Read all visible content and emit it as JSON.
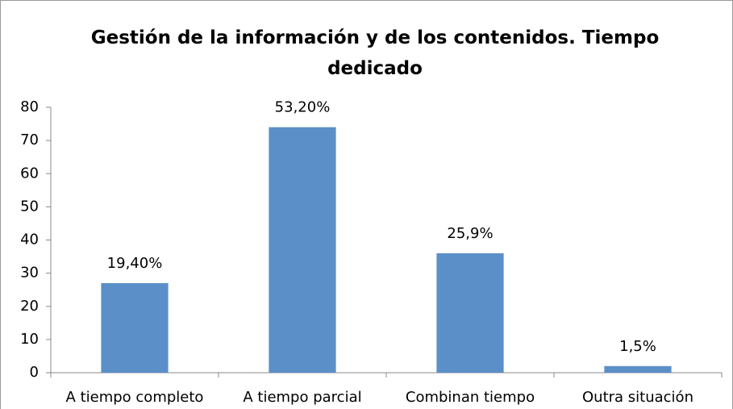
{
  "chart_data": {
    "type": "bar",
    "title": "Gestión de la información y de los contenidos. Tiempo dedicado",
    "categories": [
      "A tiempo completo",
      "A tiempo parcial",
      "Combinan tiempo",
      "Outra situación"
    ],
    "values": [
      27,
      74,
      36,
      2
    ],
    "annotations": [
      "19,40%",
      "53,20%",
      "25,9%",
      "1,5%"
    ],
    "color": "#5b8fc7",
    "ylim": [
      0,
      80
    ],
    "yticks": [
      0,
      10,
      20,
      30,
      40,
      50,
      60,
      70,
      80
    ],
    "grid": false
  }
}
